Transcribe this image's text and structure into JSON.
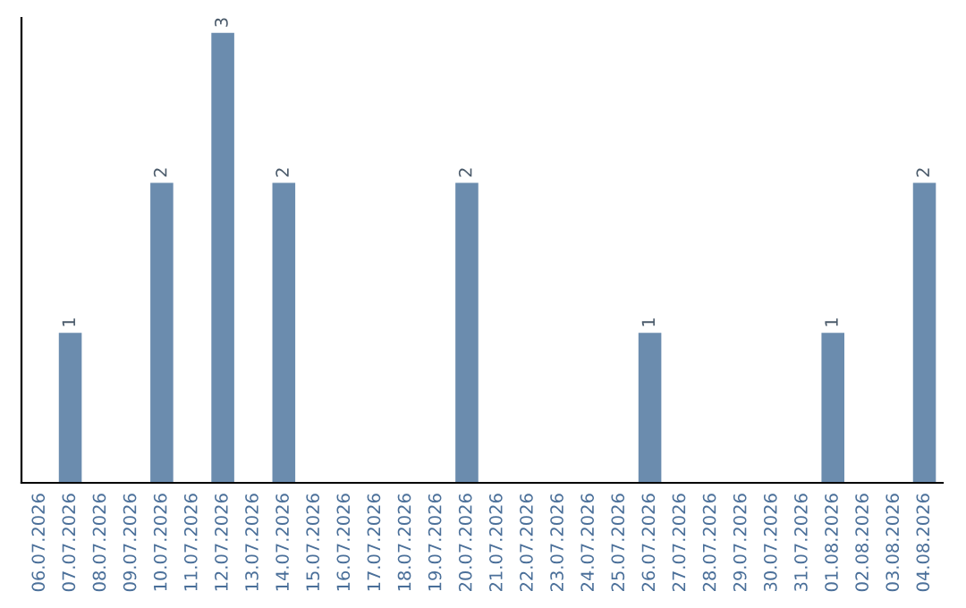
{
  "chart_data": {
    "type": "bar",
    "categories": [
      "06.07.2026",
      "07.07.2026",
      "08.07.2026",
      "09.07.2026",
      "10.07.2026",
      "11.07.2026",
      "12.07.2026",
      "13.07.2026",
      "14.07.2026",
      "15.07.2026",
      "16.07.2026",
      "17.07.2026",
      "18.07.2026",
      "19.07.2026",
      "20.07.2026",
      "21.07.2026",
      "22.07.2026",
      "23.07.2026",
      "24.07.2026",
      "25.07.2026",
      "26.07.2026",
      "27.07.2026",
      "28.07.2026",
      "29.07.2026",
      "30.07.2026",
      "31.07.2026",
      "01.08.2026",
      "02.08.2026",
      "03.08.2026",
      "04.08.2026"
    ],
    "values": [
      0,
      1,
      0,
      0,
      2,
      0,
      3,
      0,
      2,
      0,
      0,
      0,
      0,
      0,
      2,
      0,
      0,
      0,
      0,
      0,
      1,
      0,
      0,
      0,
      0,
      0,
      1,
      0,
      0,
      2
    ],
    "value_labels": [
      null,
      "1",
      null,
      null,
      "2",
      null,
      "3",
      null,
      "2",
      null,
      null,
      null,
      null,
      null,
      "2",
      null,
      null,
      null,
      null,
      null,
      "1",
      null,
      null,
      null,
      null,
      null,
      "1",
      null,
      null,
      "2"
    ],
    "color": "#6b8cae",
    "ylim": [
      0,
      3.1
    ],
    "tick_labels": "x",
    "grid": false,
    "legend": false
  }
}
